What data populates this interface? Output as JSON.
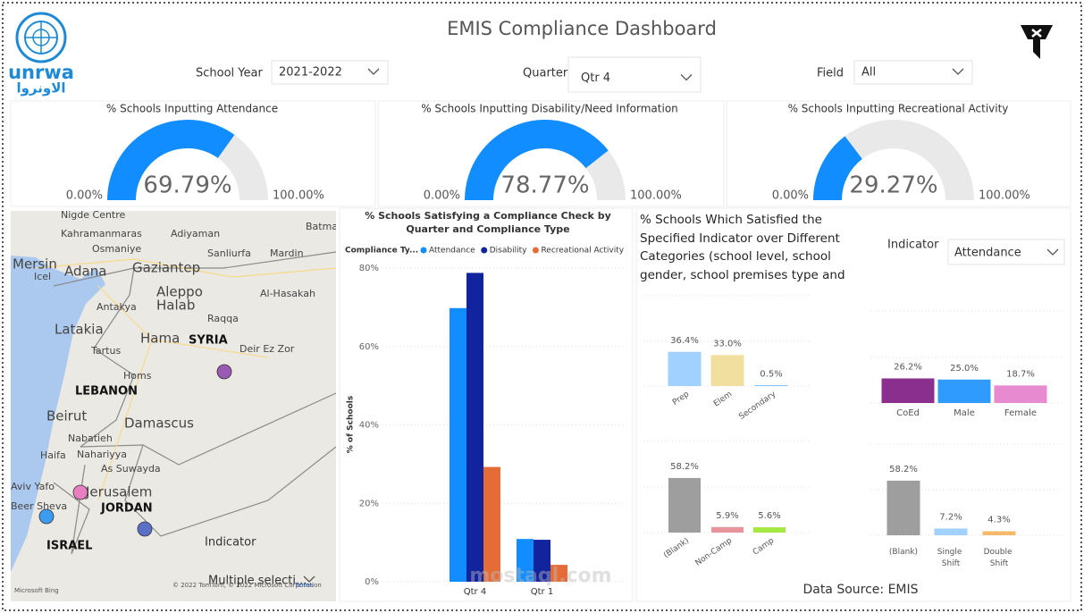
{
  "header": {
    "title": "EMIS Compliance Dashboard",
    "logo_latin": "unrwa",
    "logo_arabic": "الاونروا"
  },
  "filters": [
    {
      "label": "School Year",
      "value": "2021-2022"
    },
    {
      "label": "Quarter",
      "value": "Qtr 4"
    },
    {
      "label": "Field",
      "value": "All"
    }
  ],
  "map": {
    "labels": [
      "Nigde Centre",
      "Kahramanmaras",
      "Adiyaman",
      "Osmaniye",
      "Sanliurfa",
      "Mardin",
      "Batman",
      "Mersin",
      "Adana",
      "Gaziantep",
      "Icel",
      "Antakya",
      "Aleppo",
      "Halab",
      "Al-Hasakah",
      "Raqqa",
      "Latakia",
      "Hama",
      "SYRIA",
      "Tartus",
      "Deir Ez Zor",
      "Homs",
      "LEBANON",
      "Beirut",
      "Damascus",
      "Nabatieh",
      "Haifa",
      "Nahariyya",
      "As Suwayda",
      "Aviv Yafo",
      "Jerusalem",
      "Beer Sheva",
      "JORDAN",
      "ISRAEL"
    ],
    "point_colors": [
      "#9b59b6",
      "#e87fc0",
      "#3c9cf0",
      "#5b6fc9"
    ],
    "overlay_labels": [
      "Indicator",
      "Multiple selecti..."
    ],
    "provider": "Microsoft Bing",
    "attribution": "© 2022 TomTom, © 2022 Microsoft Corporation",
    "terms": "Terms"
  },
  "indicator_panel": {
    "title": "% Schools Which Satisfied the Specified Indicator over Different Categories (school level, school gender, school premises type and shift)",
    "slicer_label": "Indicator",
    "slicer_value": "Attendance"
  },
  "footer": {
    "data_source": "Data Source: EMIS",
    "watermark": "mostaql.com"
  },
  "chart_data": [
    {
      "type": "gauge",
      "title": "% Schools Inputting Attendance",
      "values": [
        69.79
      ],
      "value_labels": [
        "69.79%"
      ],
      "ylim": [
        0,
        100
      ],
      "yticks": [
        {
          "value": 0,
          "label": "0.00%"
        },
        {
          "value": 100,
          "label": "100.00%"
        }
      ],
      "color": "#118dff",
      "track_color": "#e9e9e9"
    },
    {
      "type": "gauge",
      "title": "% Schools Inputting Disability/Need Information",
      "values": [
        78.77
      ],
      "value_labels": [
        "78.77%"
      ],
      "ylim": [
        0,
        100
      ],
      "yticks": [
        {
          "value": 0,
          "label": "0.00%"
        },
        {
          "value": 100,
          "label": "100.00%"
        }
      ],
      "color": "#118dff",
      "track_color": "#e9e9e9"
    },
    {
      "type": "gauge",
      "title": "% Schools Inputting Recreational Activity",
      "values": [
        29.27
      ],
      "value_labels": [
        "29.27%"
      ],
      "ylim": [
        0,
        100
      ],
      "yticks": [
        {
          "value": 0,
          "label": "0.00%"
        },
        {
          "value": 100,
          "label": "100.00%"
        }
      ],
      "color": "#118dff",
      "track_color": "#e9e9e9"
    },
    {
      "type": "grouped-bar",
      "title": "% Schools Satisfying a Compliance Check by Quarter and Compliance Type",
      "legend_title": "Compliance Ty...",
      "y_label": "% of Schools",
      "categories": [
        "Qtr 4",
        "Qtr 1"
      ],
      "series": [
        {
          "name": "Attendance",
          "color": "#118dff",
          "values": [
            69.79,
            10.9
          ]
        },
        {
          "name": "Disability",
          "color": "#12239e",
          "values": [
            78.77,
            10.7
          ]
        },
        {
          "name": "Recreational Activity",
          "color": "#e66c37",
          "values": [
            29.27,
            4.3
          ]
        }
      ],
      "ylim": [
        0,
        80
      ],
      "yticks": [
        {
          "value": 0,
          "label": "0%"
        },
        {
          "value": 20,
          "label": "20%"
        },
        {
          "value": 40,
          "label": "40%"
        },
        {
          "value": 60,
          "label": "60%"
        },
        {
          "value": 80,
          "label": "80%"
        }
      ],
      "grid": true
    },
    {
      "type": "bar",
      "categories": [
        "Prep",
        "Elem",
        "Secondary"
      ],
      "values": [
        36.4,
        33,
        0.5
      ],
      "value_labels": [
        "36.4%",
        "33.0%",
        "0.5%"
      ],
      "colors": [
        "#a0d1ff",
        "#f0df9f",
        "#118dff"
      ],
      "grid": true
    },
    {
      "type": "bar",
      "categories": [
        "CoEd",
        "Male",
        "Female"
      ],
      "values": [
        26.2,
        25,
        18.7
      ],
      "value_labels": [
        "26.2%",
        "25.0%",
        "18.7%"
      ],
      "colors": [
        "#8b2f8f",
        "#2f9bff",
        "#e88ad0"
      ],
      "grid": true
    },
    {
      "type": "bar",
      "categories": [
        "(Blank)",
        "Non-Camp",
        "Camp"
      ],
      "values": [
        58.2,
        5.9,
        5.6
      ],
      "value_labels": [
        "58.2%",
        "5.9%",
        "5.6%"
      ],
      "colors": [
        "#9e9e9e",
        "#e8949c",
        "#a4e840"
      ],
      "grid": true
    },
    {
      "type": "bar",
      "categories": [
        "(Blank)",
        "Single Shift",
        "Double Shift"
      ],
      "values": [
        58.2,
        7.2,
        4.3
      ],
      "value_labels": [
        "58.2%",
        "7.2%",
        "4.3%"
      ],
      "colors": [
        "#9e9e9e",
        "#a0d1ff",
        "#f5b96b"
      ],
      "grid": true
    }
  ]
}
